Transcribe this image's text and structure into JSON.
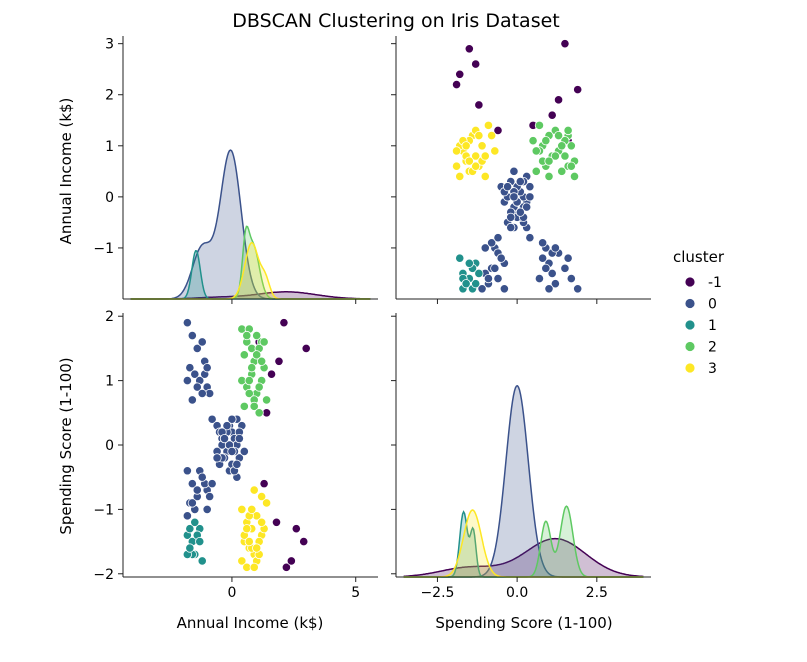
{
  "chart_data": {
    "type": "scatter",
    "title": "DBSCAN Clustering on Iris Dataset",
    "variables": [
      "Annual Income (k$)",
      "Spending Score (1-100)"
    ],
    "xlabels": [
      "Annual Income (k$)",
      "Spending Score (1-100)"
    ],
    "ylabels": [
      "Annual Income (k$)",
      "Spending Score (1-100)"
    ],
    "xlim": [
      [
        -4.4,
        5.9
      ],
      [
        -3.8,
        4.2
      ]
    ],
    "ylim": [
      [
        -2.0,
        3.15
      ],
      [
        -2.05,
        2.05
      ]
    ],
    "xticks": [
      [
        0,
        5
      ],
      [
        -2.5,
        0.0,
        2.5
      ]
    ],
    "xtick_labels": [
      [
        "0",
        "5"
      ],
      [
        "−2.5",
        "0.0",
        "2.5"
      ]
    ],
    "yticks": [
      [
        -1,
        0,
        1,
        2,
        3
      ],
      [
        -2,
        -1,
        0,
        1,
        2
      ]
    ],
    "ytick_labels": [
      [
        "−1",
        "0",
        "1",
        "2",
        "3"
      ],
      [
        "−2",
        "−1",
        "0",
        "1",
        "2"
      ]
    ],
    "grid": false,
    "legend": {
      "title": "cluster",
      "placement": "right",
      "entries": [
        {
          "label": "-1",
          "color": "#440154"
        },
        {
          "label": "0",
          "color": "#3b528b"
        },
        {
          "label": "1",
          "color": "#21918c"
        },
        {
          "label": "2",
          "color": "#5ec962"
        },
        {
          "label": "3",
          "color": "#fde725"
        }
      ]
    },
    "points": [
      {
        "cluster": -1,
        "x": [
          2.2,
          2.9,
          1.8,
          1.3,
          2.4,
          2.6,
          1.6,
          1.1,
          2.1,
          1.9,
          1.4,
          3.0
        ],
        "y": [
          -1.9,
          -1.5,
          -1.2,
          -0.6,
          -1.8,
          -1.3,
          1.1,
          1.6,
          1.9,
          1.3,
          0.5,
          1.5
        ]
      },
      {
        "cluster": 0,
        "x": [
          -1.8,
          -1.6,
          -1.4,
          -1.2,
          -1.1,
          -1.7,
          -1.5,
          -1.3,
          -1.0,
          -0.9,
          -1.8,
          -1.6,
          -1.4,
          -1.2,
          -1.1,
          -1.0,
          -0.8,
          -0.6,
          -0.5,
          -0.4,
          -0.3,
          -0.2,
          -0.1,
          0.0,
          0.1,
          0.2,
          0.3,
          -0.5,
          -0.3,
          -0.1,
          0.1,
          0.2,
          0.4,
          -0.4,
          -0.2,
          0.0,
          0.2,
          -0.6,
          -0.3,
          0.0,
          0.3,
          -0.4,
          -0.1,
          0.2,
          -1.8,
          -1.6,
          -1.4,
          -1.2,
          -1.0,
          -1.7,
          -1.5,
          -1.3,
          -1.1,
          -0.9,
          -1.8,
          -1.6,
          -1.4,
          -1.2,
          -1.0,
          -0.8,
          0.3,
          0.5,
          -0.2,
          0.1,
          -0.6,
          -0.4,
          -0.1,
          0.2,
          -0.3,
          0.0
        ],
        "y": [
          1.9,
          1.7,
          1.5,
          1.6,
          1.3,
          1.2,
          1.1,
          1.0,
          0.9,
          0.8,
          1.0,
          0.7,
          0.9,
          0.8,
          1.1,
          1.2,
          0.4,
          0.3,
          0.2,
          0.1,
          0.0,
          -0.1,
          0.3,
          0.2,
          0.1,
          0.0,
          -0.2,
          -0.3,
          -0.2,
          -0.4,
          -0.1,
          0.4,
          0.3,
          0.0,
          0.2,
          -0.3,
          -0.5,
          -0.1,
          0.1,
          0.4,
          0.2,
          -0.2,
          0.0,
          -0.3,
          -0.4,
          -0.6,
          -0.8,
          -0.5,
          -0.7,
          -0.9,
          -1.0,
          -0.4,
          -0.6,
          -0.8,
          -1.1,
          -0.9,
          -0.7,
          -0.5,
          -1.0,
          -0.6,
          0.1,
          -0.1,
          0.3,
          -0.4,
          -0.2,
          0.2,
          0.0,
          -0.3,
          0.1,
          -0.1
        ]
      },
      {
        "cluster": 1,
        "x": [
          -1.8,
          -1.7,
          -1.6,
          -1.5,
          -1.3,
          -1.2,
          -1.4,
          -1.6,
          -1.8,
          -1.3,
          -1.7,
          -1.5
        ],
        "y": [
          -1.4,
          -1.3,
          -1.5,
          -1.7,
          -1.3,
          -1.8,
          -1.4,
          -1.7,
          -1.7,
          -1.5,
          -1.6,
          -1.2
        ]
      },
      {
        "cluster": 2,
        "x": [
          0.4,
          0.6,
          0.8,
          1.0,
          1.2,
          0.5,
          0.7,
          0.9,
          1.1,
          1.3,
          0.4,
          0.6,
          0.8,
          1.0,
          1.2,
          1.4,
          0.5,
          0.7,
          0.9,
          1.1,
          0.6,
          0.8,
          1.0,
          1.2,
          0.7,
          0.9,
          1.1,
          1.3
        ],
        "y": [
          1.8,
          1.6,
          1.5,
          1.7,
          1.6,
          1.4,
          1.8,
          1.3,
          1.5,
          1.2,
          1.0,
          0.9,
          1.1,
          0.8,
          1.0,
          0.7,
          0.6,
          0.8,
          0.7,
          0.9,
          1.7,
          1.2,
          1.4,
          1.3,
          1.0,
          0.6,
          0.5,
          1.6
        ]
      },
      {
        "cluster": 3,
        "x": [
          0.4,
          0.6,
          0.8,
          1.0,
          1.2,
          0.5,
          0.7,
          0.9,
          1.1,
          1.3,
          0.4,
          0.6,
          0.8,
          1.0,
          1.2,
          0.5,
          0.7,
          0.9,
          1.1,
          0.6,
          0.8,
          1.0,
          1.2,
          1.4,
          0.7,
          0.9
        ],
        "y": [
          -1.0,
          -1.2,
          -1.3,
          -1.1,
          -1.4,
          -1.5,
          -1.6,
          -1.7,
          -1.5,
          -1.3,
          -1.8,
          -1.9,
          -1.6,
          -1.8,
          -1.2,
          -1.4,
          -1.1,
          -1.9,
          -1.7,
          -1.3,
          -1.0,
          -1.6,
          -0.8,
          -0.9,
          -1.5,
          -0.7
        ]
      }
    ],
    "kde_diag": {
      "Annual Income (k$)": [
        {
          "cluster": -1,
          "peaks": [
            {
              "mu": 2.2,
              "sigma": 1.2,
              "h": 0.14
            },
            {
              "mu": -0.6,
              "sigma": 0.9,
              "h": 0.03
            }
          ]
        },
        {
          "cluster": 0,
          "peaks": [
            {
              "mu": -0.05,
              "sigma": 0.42,
              "h": 2.9
            },
            {
              "mu": -1.2,
              "sigma": 0.4,
              "h": 1.0
            }
          ]
        },
        {
          "cluster": 1,
          "peaks": [
            {
              "mu": -1.45,
              "sigma": 0.17,
              "h": 0.95
            }
          ]
        },
        {
          "cluster": 2,
          "peaks": [
            {
              "mu": 0.55,
              "sigma": 0.13,
              "h": 0.85
            },
            {
              "mu": 0.85,
              "sigma": 0.25,
              "h": 1.05
            }
          ]
        },
        {
          "cluster": 3,
          "peaks": [
            {
              "mu": 0.8,
              "sigma": 0.28,
              "h": 1.1
            },
            {
              "mu": 1.35,
              "sigma": 0.18,
              "h": 0.35
            }
          ]
        }
      ],
      "Spending Score (1-100)": [
        {
          "cluster": -1,
          "peaks": [
            {
              "mu": 1.2,
              "sigma": 0.95,
              "h": 0.2
            },
            {
              "mu": -1.5,
              "sigma": 0.9,
              "h": 0.05
            }
          ]
        },
        {
          "cluster": 0,
          "peaks": [
            {
              "mu": 0.0,
              "sigma": 0.35,
              "h": 1.0
            }
          ]
        },
        {
          "cluster": 1,
          "peaks": [
            {
              "mu": -1.68,
              "sigma": 0.12,
              "h": 0.34
            },
            {
              "mu": -1.38,
              "sigma": 0.09,
              "h": 0.24
            }
          ]
        },
        {
          "cluster": 2,
          "peaks": [
            {
              "mu": 0.9,
              "sigma": 0.16,
              "h": 0.29
            },
            {
              "mu": 1.55,
              "sigma": 0.2,
              "h": 0.37
            }
          ]
        },
        {
          "cluster": 3,
          "peaks": [
            {
              "mu": -1.4,
              "sigma": 0.28,
              "h": 0.35
            }
          ]
        }
      ]
    }
  }
}
